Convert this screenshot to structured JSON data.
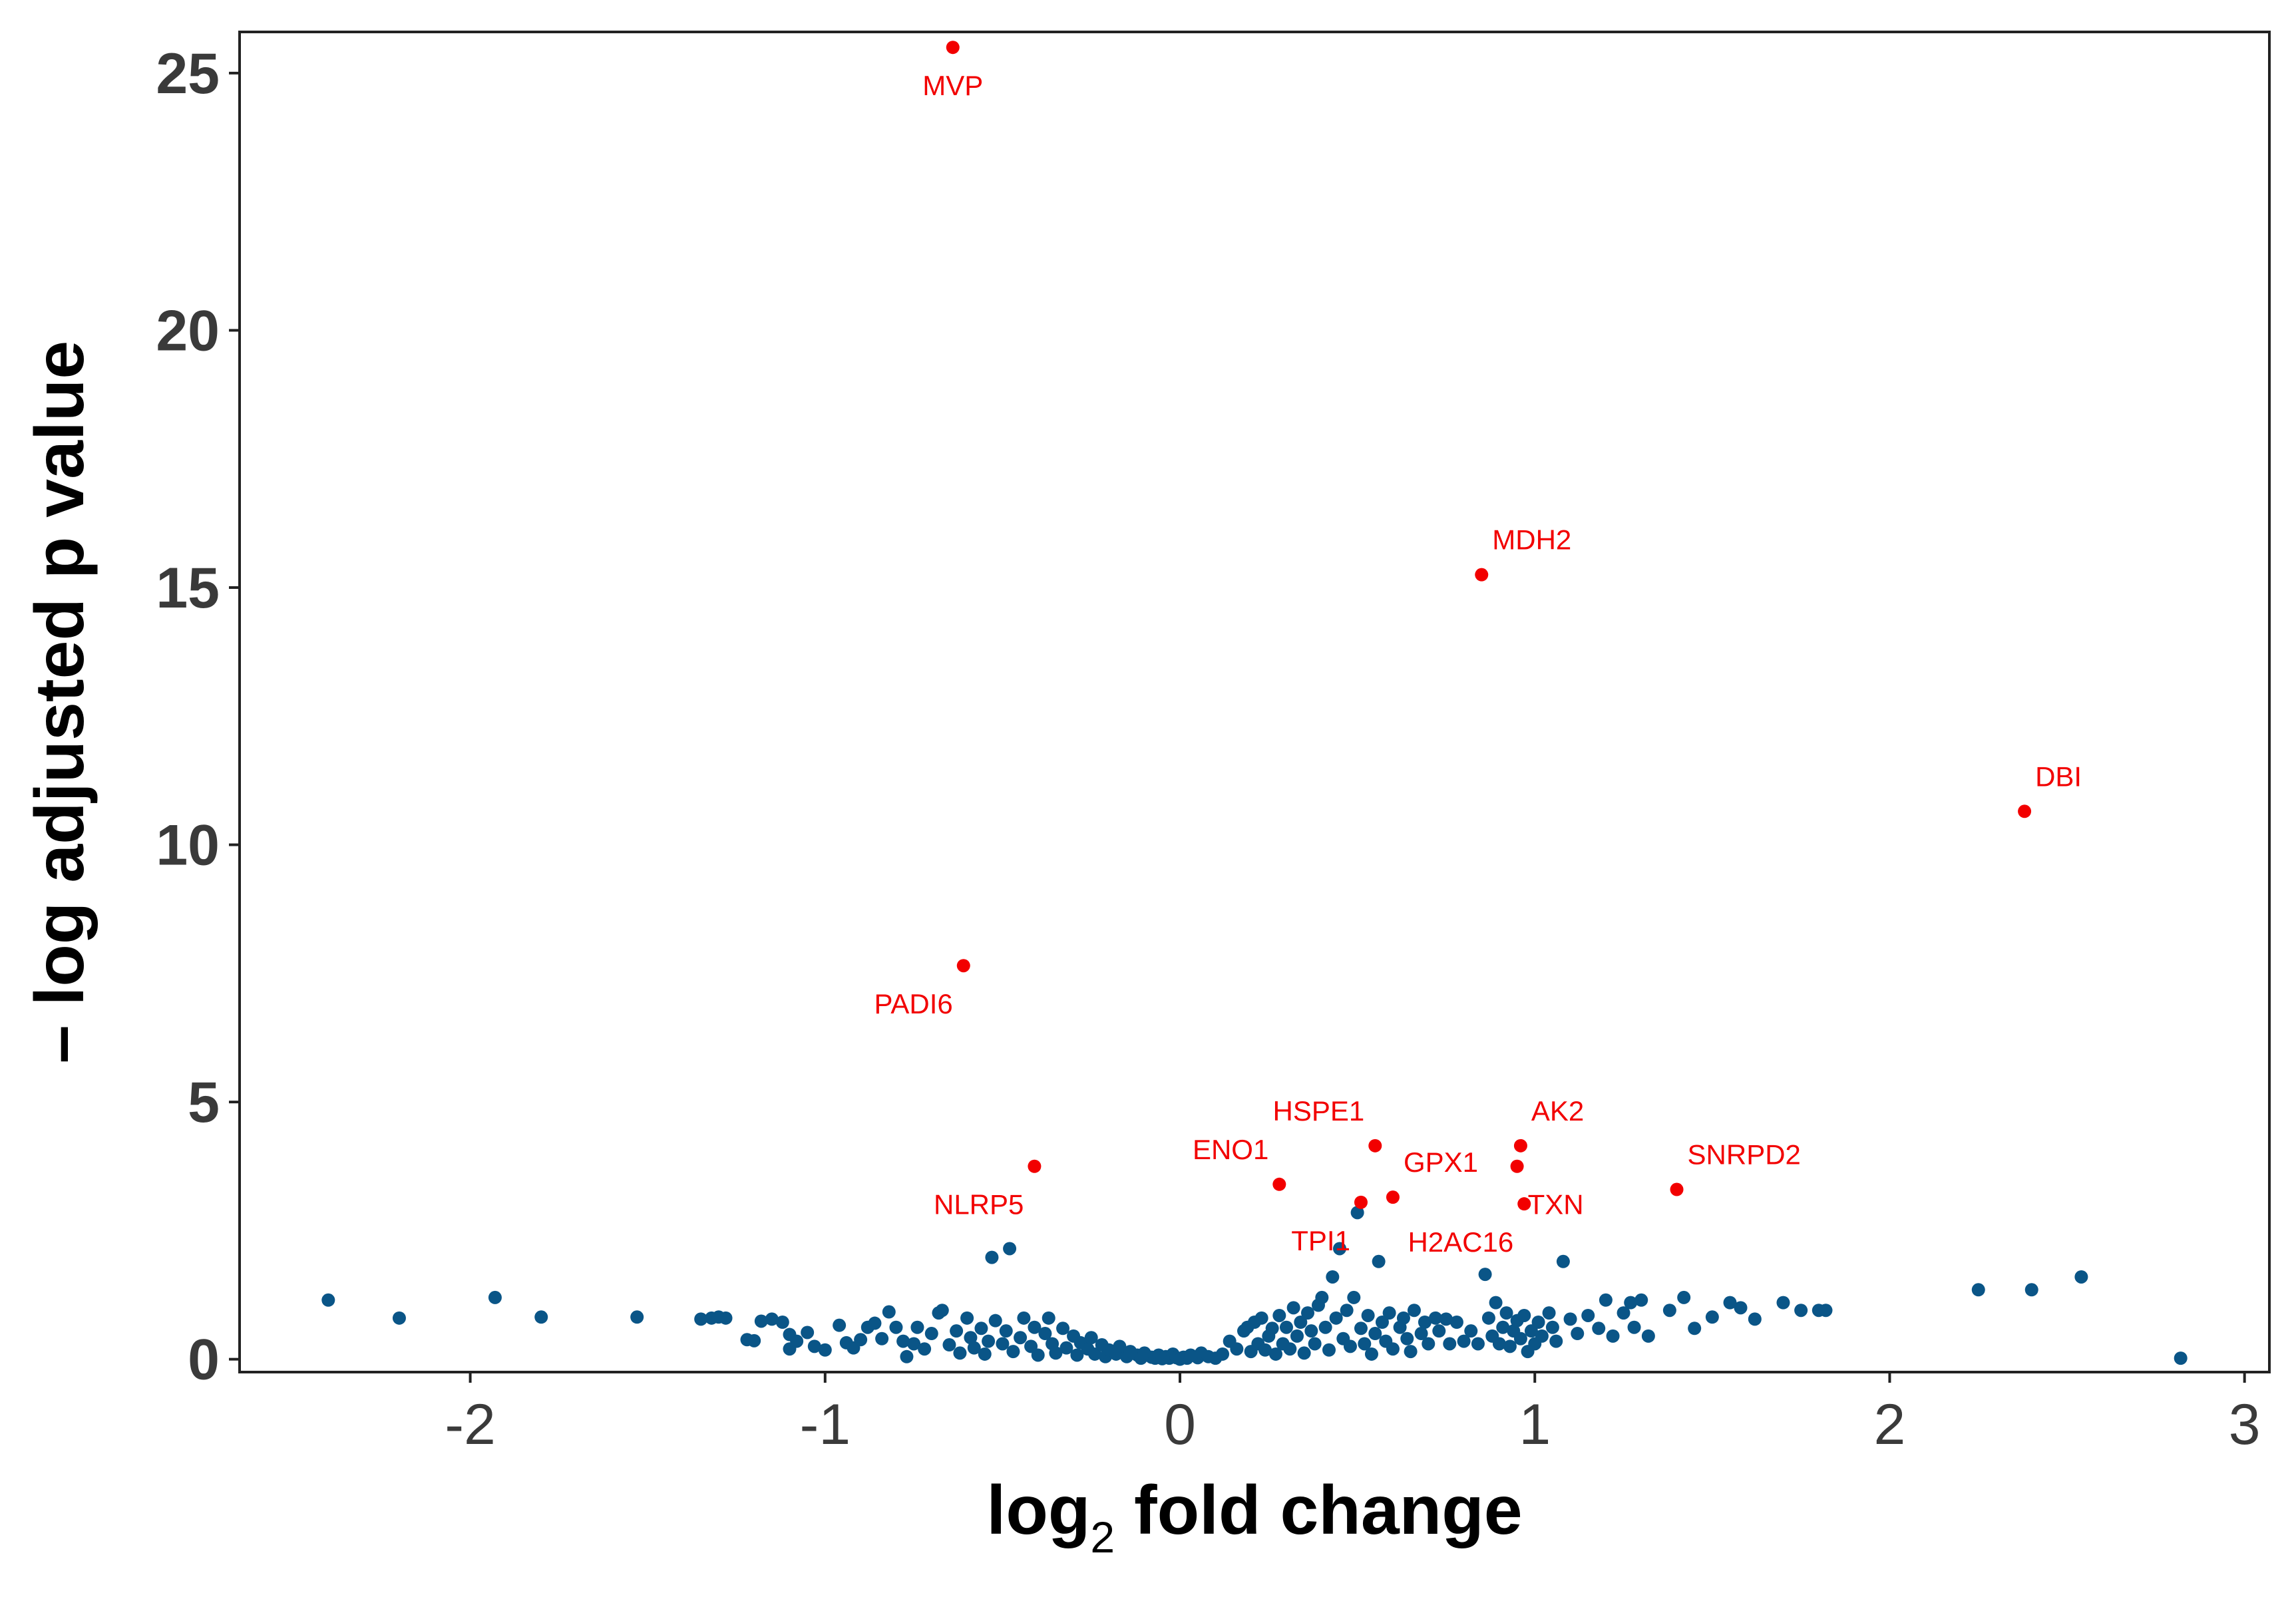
{
  "chart_data": {
    "type": "scatter",
    "xlabel_main": "log",
    "xlabel_sub": "2",
    "xlabel_rest": " fold change",
    "ylabel": "– log adjusted p value",
    "xlim": [
      -2.65,
      3.07
    ],
    "ylim": [
      -0.25,
      25.8
    ],
    "x_ticks": [
      -2,
      -1,
      0,
      1,
      2,
      3
    ],
    "x_tick_labels": [
      "-2",
      "-1",
      "0",
      "1",
      "2",
      "3"
    ],
    "y_ticks": [
      0,
      5,
      10,
      15,
      20,
      25
    ],
    "y_tick_labels": [
      "0",
      "5",
      "10",
      "15",
      "20",
      "25"
    ],
    "colors": {
      "nonsignificant": "#0a5587",
      "significant": "#f20000",
      "axis": "#222222"
    },
    "significant_points": [
      {
        "label": "MVP",
        "x": -0.64,
        "y": 25.5,
        "label_pos": "below"
      },
      {
        "label": "MDH2",
        "x": 0.85,
        "y": 15.25,
        "label_pos": "above-right"
      },
      {
        "label": "DBI",
        "x": 2.38,
        "y": 10.65,
        "label_pos": "above-right"
      },
      {
        "label": "PADI6",
        "x": -0.61,
        "y": 7.65,
        "label_pos": "below-left"
      },
      {
        "label": "NLRP5",
        "x": -0.41,
        "y": 3.75,
        "label_pos": "below-left"
      },
      {
        "label": "ENO1",
        "x": 0.28,
        "y": 3.4,
        "label_pos": "above-left"
      },
      {
        "label": "HSPE1",
        "x": 0.55,
        "y": 4.15,
        "label_pos": "above-left"
      },
      {
        "label": "TPI1",
        "x": 0.51,
        "y": 3.05,
        "label_pos": "below-left"
      },
      {
        "label": "GPX1",
        "x": 0.6,
        "y": 3.15,
        "label_pos": "above-right"
      },
      {
        "label": "H2AC16",
        "x": 0.97,
        "y": 3.02,
        "label_pos": "below-left"
      },
      {
        "label": "AK2",
        "x": 0.96,
        "y": 4.15,
        "label_pos": "above-right"
      },
      {
        "label": "TXN",
        "x": 0.95,
        "y": 3.75,
        "label_pos": "below-right"
      },
      {
        "label": "SNRPD2",
        "x": 1.4,
        "y": 3.3,
        "label_pos": "above-right"
      }
    ],
    "nonsignificant_points": [
      [
        -2.4,
        1.15
      ],
      [
        -2.2,
        0.8
      ],
      [
        -1.93,
        1.2
      ],
      [
        -1.8,
        0.82
      ],
      [
        -1.53,
        0.82
      ],
      [
        -1.35,
        0.78
      ],
      [
        -1.32,
        0.8
      ],
      [
        -1.3,
        0.82
      ],
      [
        -1.28,
        0.8
      ],
      [
        -1.22,
        0.38
      ],
      [
        -1.2,
        0.36
      ],
      [
        -1.18,
        0.74
      ],
      [
        -1.15,
        0.78
      ],
      [
        -1.12,
        0.72
      ],
      [
        -1.1,
        0.2
      ],
      [
        -1.1,
        0.48
      ],
      [
        -1.08,
        0.35
      ],
      [
        -1.05,
        0.52
      ],
      [
        -1.03,
        0.25
      ],
      [
        -1.0,
        0.18
      ],
      [
        -0.96,
        0.66
      ],
      [
        -0.94,
        0.32
      ],
      [
        -0.92,
        0.22
      ],
      [
        -0.9,
        0.38
      ],
      [
        -0.88,
        0.62
      ],
      [
        -0.86,
        0.7
      ],
      [
        -0.84,
        0.4
      ],
      [
        -0.82,
        0.92
      ],
      [
        -0.8,
        0.62
      ],
      [
        -0.78,
        0.35
      ],
      [
        -0.77,
        0.05
      ],
      [
        -0.75,
        0.3
      ],
      [
        -0.74,
        0.62
      ],
      [
        -0.72,
        0.2
      ],
      [
        -0.7,
        0.5
      ],
      [
        -0.68,
        0.9
      ],
      [
        -0.67,
        0.95
      ],
      [
        -0.65,
        0.28
      ],
      [
        -0.63,
        0.55
      ],
      [
        -0.62,
        0.12
      ],
      [
        -0.6,
        0.8
      ],
      [
        -0.59,
        0.42
      ],
      [
        -0.58,
        0.22
      ],
      [
        -0.56,
        0.6
      ],
      [
        -0.55,
        0.1
      ],
      [
        -0.54,
        0.35
      ],
      [
        -0.53,
        1.98
      ],
      [
        -0.52,
        0.75
      ],
      [
        -0.5,
        0.3
      ],
      [
        -0.49,
        0.55
      ],
      [
        -0.48,
        2.15
      ],
      [
        -0.47,
        0.15
      ],
      [
        -0.45,
        0.42
      ],
      [
        -0.44,
        0.8
      ],
      [
        -0.42,
        0.25
      ],
      [
        -0.41,
        0.62
      ],
      [
        -0.4,
        0.08
      ],
      [
        -0.38,
        0.5
      ],
      [
        -0.37,
        0.8
      ],
      [
        -0.36,
        0.3
      ],
      [
        -0.35,
        0.12
      ],
      [
        -0.33,
        0.6
      ],
      [
        -0.32,
        0.22
      ],
      [
        -0.3,
        0.45
      ],
      [
        -0.29,
        0.08
      ],
      [
        -0.28,
        0.32
      ],
      [
        -0.26,
        0.2
      ],
      [
        -0.25,
        0.42
      ],
      [
        -0.24,
        0.1
      ],
      [
        -0.22,
        0.28
      ],
      [
        -0.21,
        0.05
      ],
      [
        -0.2,
        0.18
      ],
      [
        -0.18,
        0.1
      ],
      [
        -0.17,
        0.25
      ],
      [
        -0.15,
        0.05
      ],
      [
        -0.14,
        0.15
      ],
      [
        -0.12,
        0.08
      ],
      [
        -0.11,
        0.02
      ],
      [
        -0.1,
        0.12
      ],
      [
        -0.08,
        0.04
      ],
      [
        -0.07,
        0.02
      ],
      [
        -0.06,
        0.08
      ],
      [
        -0.05,
        0.01
      ],
      [
        -0.04,
        0.05
      ],
      [
        -0.03,
        0.02
      ],
      [
        -0.02,
        0.1
      ],
      [
        -0.01,
        0.03
      ],
      [
        0.0,
        0.0
      ],
      [
        0.01,
        0.04
      ],
      [
        0.02,
        0.02
      ],
      [
        0.03,
        0.08
      ],
      [
        0.05,
        0.03
      ],
      [
        0.06,
        0.12
      ],
      [
        0.08,
        0.05
      ],
      [
        0.1,
        0.02
      ],
      [
        0.12,
        0.1
      ],
      [
        0.14,
        0.35
      ],
      [
        0.16,
        0.2
      ],
      [
        0.18,
        0.55
      ],
      [
        0.19,
        0.62
      ],
      [
        0.2,
        0.15
      ],
      [
        0.21,
        0.72
      ],
      [
        0.22,
        0.3
      ],
      [
        0.23,
        0.8
      ],
      [
        0.24,
        0.18
      ],
      [
        0.25,
        0.45
      ],
      [
        0.26,
        0.6
      ],
      [
        0.27,
        0.1
      ],
      [
        0.28,
        0.85
      ],
      [
        0.29,
        0.3
      ],
      [
        0.3,
        0.62
      ],
      [
        0.31,
        0.2
      ],
      [
        0.32,
        1.0
      ],
      [
        0.33,
        0.45
      ],
      [
        0.34,
        0.72
      ],
      [
        0.35,
        0.12
      ],
      [
        0.36,
        0.9
      ],
      [
        0.37,
        0.55
      ],
      [
        0.38,
        0.3
      ],
      [
        0.39,
        1.05
      ],
      [
        0.4,
        1.2
      ],
      [
        0.41,
        0.62
      ],
      [
        0.42,
        0.18
      ],
      [
        0.43,
        1.6
      ],
      [
        0.44,
        0.8
      ],
      [
        0.45,
        2.15
      ],
      [
        0.46,
        0.4
      ],
      [
        0.47,
        0.95
      ],
      [
        0.48,
        0.25
      ],
      [
        0.49,
        1.2
      ],
      [
        0.5,
        2.85
      ],
      [
        0.51,
        0.6
      ],
      [
        0.52,
        0.3
      ],
      [
        0.53,
        0.85
      ],
      [
        0.54,
        0.1
      ],
      [
        0.55,
        0.5
      ],
      [
        0.56,
        1.9
      ],
      [
        0.57,
        0.72
      ],
      [
        0.58,
        0.35
      ],
      [
        0.59,
        0.9
      ],
      [
        0.6,
        0.2
      ],
      [
        0.62,
        0.62
      ],
      [
        0.63,
        0.8
      ],
      [
        0.64,
        0.4
      ],
      [
        0.65,
        0.15
      ],
      [
        0.66,
        0.95
      ],
      [
        0.68,
        0.5
      ],
      [
        0.69,
        0.72
      ],
      [
        0.7,
        0.3
      ],
      [
        0.72,
        0.8
      ],
      [
        0.73,
        0.55
      ],
      [
        0.75,
        0.78
      ],
      [
        0.76,
        0.3
      ],
      [
        0.78,
        0.72
      ],
      [
        0.8,
        0.35
      ],
      [
        0.82,
        0.55
      ],
      [
        0.84,
        0.3
      ],
      [
        0.86,
        1.65
      ],
      [
        0.87,
        0.8
      ],
      [
        0.88,
        0.45
      ],
      [
        0.89,
        1.1
      ],
      [
        0.9,
        0.3
      ],
      [
        0.91,
        0.62
      ],
      [
        0.92,
        0.9
      ],
      [
        0.93,
        0.25
      ],
      [
        0.94,
        0.55
      ],
      [
        0.95,
        0.75
      ],
      [
        0.96,
        0.4
      ],
      [
        0.97,
        0.85
      ],
      [
        0.98,
        0.15
      ],
      [
        0.99,
        0.55
      ],
      [
        1.0,
        0.3
      ],
      [
        1.01,
        0.72
      ],
      [
        1.02,
        0.45
      ],
      [
        1.04,
        0.9
      ],
      [
        1.05,
        0.62
      ],
      [
        1.06,
        0.35
      ],
      [
        1.08,
        1.9
      ],
      [
        1.1,
        0.78
      ],
      [
        1.12,
        0.5
      ],
      [
        1.15,
        0.85
      ],
      [
        1.18,
        0.6
      ],
      [
        1.2,
        1.15
      ],
      [
        1.22,
        0.45
      ],
      [
        1.25,
        0.9
      ],
      [
        1.27,
        1.1
      ],
      [
        1.28,
        0.62
      ],
      [
        1.3,
        1.15
      ],
      [
        1.32,
        0.45
      ],
      [
        1.38,
        0.95
      ],
      [
        1.42,
        1.2
      ],
      [
        1.45,
        0.6
      ],
      [
        1.5,
        0.82
      ],
      [
        1.55,
        1.1
      ],
      [
        1.58,
        1.0
      ],
      [
        1.62,
        0.78
      ],
      [
        1.7,
        1.1
      ],
      [
        1.75,
        0.95
      ],
      [
        1.8,
        0.95
      ],
      [
        1.82,
        0.95
      ],
      [
        2.25,
        1.35
      ],
      [
        2.4,
        1.35
      ],
      [
        2.54,
        1.6
      ],
      [
        2.82,
        0.02
      ]
    ]
  }
}
